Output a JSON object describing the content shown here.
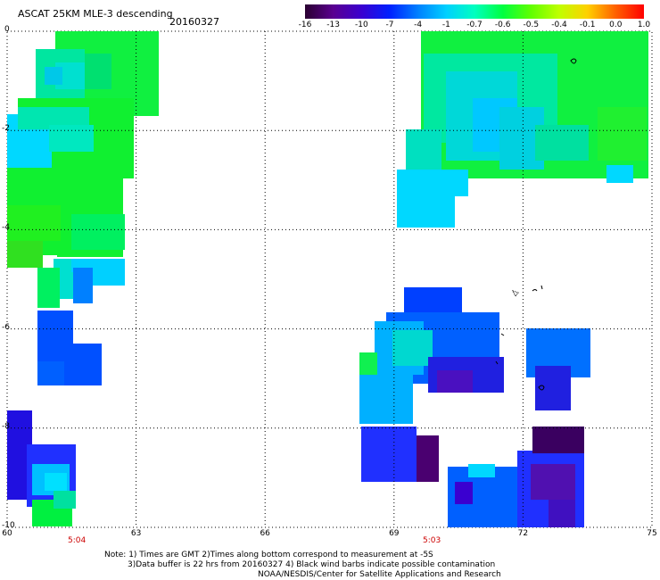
{
  "header": {
    "title": "ASCAT 25KM MLE-3 descending",
    "date": "20160327"
  },
  "colorbar": {
    "labels": [
      "-16",
      "-13",
      "-10",
      "-7",
      "-4",
      "-1",
      "-0.7",
      "-0.6",
      "-0.5",
      "-0.4",
      "-0.1",
      "0.0",
      "1.0"
    ],
    "colors": [
      "#2a0030",
      "#5a0090",
      "#3a00d0",
      "#0020ff",
      "#0080ff",
      "#00d0ff",
      "#00ffc0",
      "#00ff40",
      "#60ff00",
      "#c0ff00",
      "#ffd000",
      "#ff6000",
      "#ff0000"
    ]
  },
  "axes": {
    "x_ticks": [
      "60",
      "63",
      "66",
      "69",
      "72",
      "75"
    ],
    "y_ticks": [
      "0",
      "-2",
      "-4",
      "-6",
      "-8",
      "-10"
    ]
  },
  "time_labels": [
    "5:04",
    "5:03"
  ],
  "notes": {
    "line1": "Note: 1) Times are GMT 2)Times along bottom correspond to measurement at -5S",
    "line2": "3)Data buffer is 22 hrs from 20160327 4) Black wind barbs indicate possible contamination",
    "line3": "NOAA/NESDIS/Center for Satellite Applications and Research"
  },
  "colors": {
    "time_label": "#cc0000",
    "grid": "#000000"
  }
}
